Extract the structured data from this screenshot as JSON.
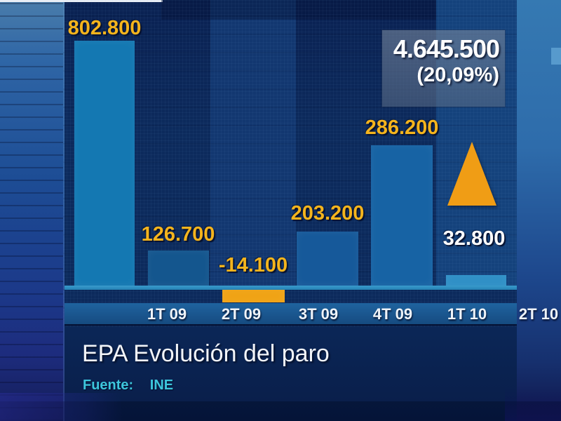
{
  "chart_data": {
    "type": "bar",
    "title": "EPA Evolución del paro",
    "source": {
      "label": "Fuente:",
      "value": "INE"
    },
    "categories": [
      "1T 09",
      "2T 09",
      "3T 09",
      "4T 09",
      "1T 10",
      "2T 10"
    ],
    "values": [
      802800,
      126700,
      -14100,
      203200,
      286200,
      32800
    ],
    "bar_labels": [
      "802.800",
      "126.700",
      "-14.100",
      "203.200",
      "286.200",
      "32.800"
    ],
    "annotation": {
      "total": "4.645.500",
      "percent": "(20,09%)"
    },
    "marker": {
      "icon": "up-triangle-icon",
      "color": "#f09d15",
      "position": "above 2T 10"
    },
    "layout": {
      "legend": "none",
      "grid": false,
      "baseline": 0,
      "negative_bars_below_axis": true
    },
    "colors": {
      "bars": [
        "#1478b2",
        "#14568e",
        "#f0a315",
        "#16599a",
        "#1763a4",
        "#2e8fc6"
      ],
      "value_label": "#f4b41d",
      "last_value_label": "#ffffff",
      "axis_line": "#2b8abf",
      "tick_band": "#1b5b94",
      "background": "#0c2a5c",
      "annotation_box": "#5f7186",
      "title_text": "#f2f4f8",
      "source_text": "#3dc6dc"
    }
  }
}
